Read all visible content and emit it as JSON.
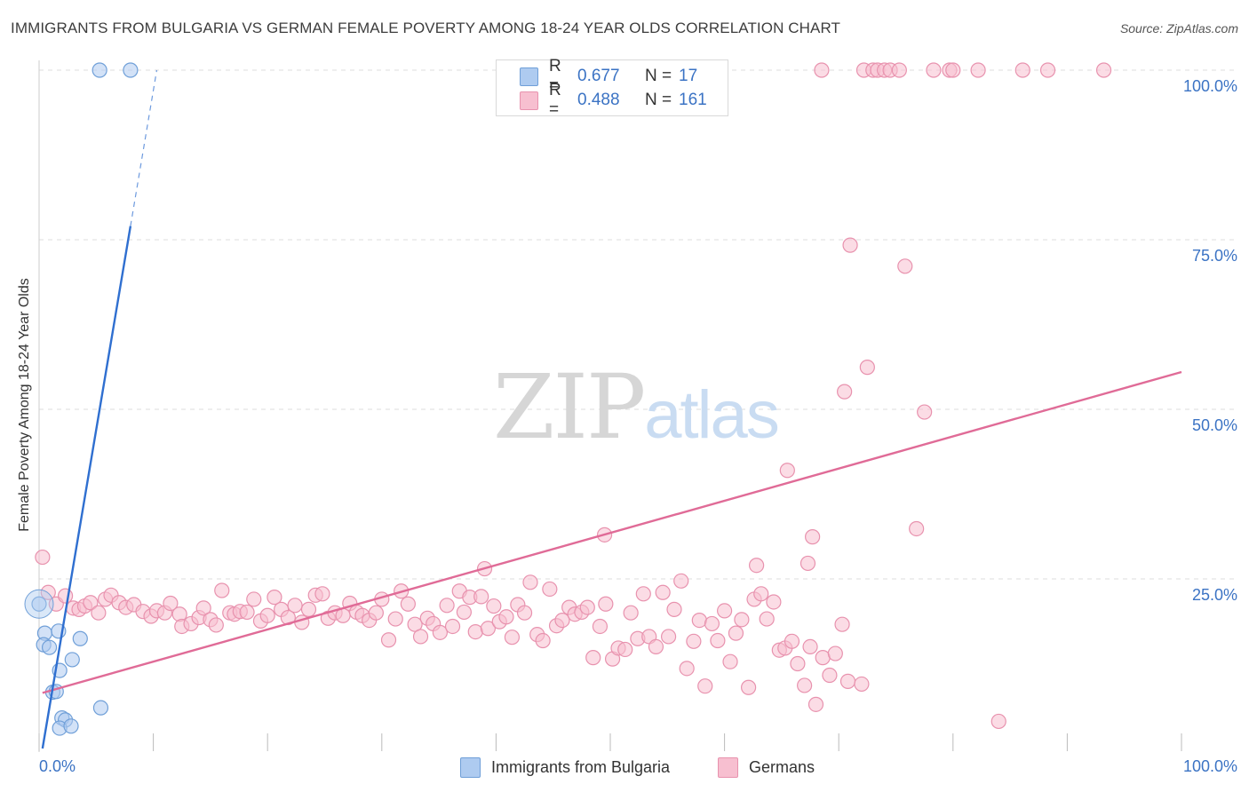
{
  "title": "IMMIGRANTS FROM BULGARIA VS GERMAN FEMALE POVERTY AMONG 18-24 YEAR OLDS CORRELATION CHART",
  "source": "Source: ZipAtlas.com",
  "watermark": {
    "zip": "ZIP",
    "atlas": "atlas"
  },
  "legend": {
    "r_label": "R =",
    "n_label": "N =",
    "rows": [
      {
        "r": "0.677",
        "n": "17"
      },
      {
        "r": "0.488",
        "n": "161"
      }
    ]
  },
  "colors": {
    "bulgaria_fill": "#aecbf0",
    "bulgaria_stroke": "#6f9fd8",
    "bulgaria_line": "#2f6fd0",
    "germans_fill": "#f7bfd0",
    "germans_stroke": "#e892ae",
    "germans_line": "#e06b97",
    "tick_label": "#3b73c4",
    "grid": "#dddddd"
  },
  "chart_data": {
    "type": "scatter",
    "title": "IMMIGRANTS FROM BULGARIA VS GERMAN FEMALE POVERTY AMONG 18-24 YEAR OLDS CORRELATION CHART",
    "xlabel": "",
    "ylabel": "Female Poverty Among 18-24 Year Olds",
    "xlim": [
      0,
      100
    ],
    "ylim": [
      0,
      100
    ],
    "x_tick_labels": [
      "0.0%",
      "100.0%"
    ],
    "y_ticks": [
      25,
      50,
      75,
      100
    ],
    "y_tick_labels": [
      "25.0%",
      "50.0%",
      "75.0%",
      "100.0%"
    ],
    "grid": true,
    "legend_position": "top-center",
    "series": [
      {
        "name": "Immigrants from Bulgaria",
        "r": 0.677,
        "n": 17,
        "trend": {
          "x": [
            0.3,
            8.0
          ],
          "y": [
            0,
            77
          ],
          "dashed_to": {
            "x": 10.3,
            "y": 100
          }
        },
        "points": [
          [
            5.3,
            100
          ],
          [
            8.0,
            100
          ],
          [
            0.0,
            21.3
          ],
          [
            0.5,
            17
          ],
          [
            0.4,
            15.3
          ],
          [
            0.9,
            14.9
          ],
          [
            1.7,
            17.3
          ],
          [
            3.6,
            16.2
          ],
          [
            1.8,
            11.5
          ],
          [
            2.9,
            13.1
          ],
          [
            1.2,
            8.3
          ],
          [
            1.5,
            8.4
          ],
          [
            2.0,
            4.5
          ],
          [
            2.3,
            4.2
          ],
          [
            5.4,
            6.0
          ],
          [
            1.8,
            3.0
          ],
          [
            2.8,
            3.3
          ]
        ]
      },
      {
        "name": "Germans",
        "r": 0.488,
        "n": 161,
        "trend": {
          "x": [
            0.3,
            100
          ],
          "y": [
            8.2,
            55.5
          ]
        },
        "points": [
          [
            68.5,
            100
          ],
          [
            72.2,
            100
          ],
          [
            73.0,
            100
          ],
          [
            73.4,
            100
          ],
          [
            74.0,
            100
          ],
          [
            74.5,
            100
          ],
          [
            75.3,
            100
          ],
          [
            78.3,
            100
          ],
          [
            79.7,
            100
          ],
          [
            80.0,
            100
          ],
          [
            82.2,
            100
          ],
          [
            86.1,
            100
          ],
          [
            88.3,
            100
          ],
          [
            93.2,
            100
          ],
          [
            71.0,
            74.2
          ],
          [
            75.8,
            71.1
          ],
          [
            72.5,
            56.2
          ],
          [
            70.5,
            52.6
          ],
          [
            77.5,
            49.6
          ],
          [
            65.5,
            41.0
          ],
          [
            49.5,
            31.5
          ],
          [
            67.7,
            31.2
          ],
          [
            76.8,
            32.4
          ],
          [
            39.0,
            26.5
          ],
          [
            62.8,
            27.0
          ],
          [
            67.3,
            27.3
          ],
          [
            0.3,
            28.2
          ],
          [
            0.8,
            23.0
          ],
          [
            1.5,
            21.3
          ],
          [
            2.3,
            22.5
          ],
          [
            3.0,
            20.7
          ],
          [
            3.5,
            20.5
          ],
          [
            4.0,
            21.0
          ],
          [
            4.5,
            21.5
          ],
          [
            5.2,
            20.0
          ],
          [
            5.8,
            22.0
          ],
          [
            6.3,
            22.6
          ],
          [
            7.0,
            21.5
          ],
          [
            7.6,
            20.8
          ],
          [
            8.3,
            21.2
          ],
          [
            9.1,
            20.2
          ],
          [
            9.8,
            19.5
          ],
          [
            10.3,
            20.3
          ],
          [
            11.0,
            20.0
          ],
          [
            11.5,
            21.4
          ],
          [
            12.3,
            19.8
          ],
          [
            12.5,
            18.0
          ],
          [
            13.3,
            18.4
          ],
          [
            14.0,
            19.3
          ],
          [
            14.4,
            20.7
          ],
          [
            15.0,
            19.0
          ],
          [
            15.5,
            18.2
          ],
          [
            16.0,
            23.3
          ],
          [
            16.7,
            20.0
          ],
          [
            17.1,
            19.8
          ],
          [
            17.6,
            20.2
          ],
          [
            18.2,
            20.1
          ],
          [
            18.8,
            22.0
          ],
          [
            19.4,
            18.8
          ],
          [
            20.0,
            19.6
          ],
          [
            20.6,
            22.3
          ],
          [
            21.2,
            20.5
          ],
          [
            21.8,
            19.3
          ],
          [
            22.4,
            21.1
          ],
          [
            23.0,
            18.6
          ],
          [
            23.6,
            20.5
          ],
          [
            24.2,
            22.6
          ],
          [
            24.8,
            22.8
          ],
          [
            25.3,
            19.2
          ],
          [
            25.9,
            20.0
          ],
          [
            26.6,
            19.6
          ],
          [
            27.2,
            21.4
          ],
          [
            27.8,
            20.1
          ],
          [
            28.3,
            19.6
          ],
          [
            28.9,
            18.9
          ],
          [
            29.5,
            20.0
          ],
          [
            30.0,
            22.0
          ],
          [
            30.6,
            16.0
          ],
          [
            31.2,
            19.1
          ],
          [
            31.7,
            23.2
          ],
          [
            32.3,
            21.3
          ],
          [
            32.9,
            18.3
          ],
          [
            33.4,
            16.5
          ],
          [
            34.0,
            19.2
          ],
          [
            34.5,
            18.4
          ],
          [
            35.1,
            17.1
          ],
          [
            35.7,
            21.1
          ],
          [
            36.2,
            18.0
          ],
          [
            36.8,
            23.2
          ],
          [
            37.2,
            20.1
          ],
          [
            37.7,
            22.3
          ],
          [
            38.2,
            17.2
          ],
          [
            38.7,
            22.4
          ],
          [
            39.3,
            17.7
          ],
          [
            39.8,
            21.0
          ],
          [
            40.3,
            18.7
          ],
          [
            40.9,
            19.4
          ],
          [
            41.4,
            16.4
          ],
          [
            41.9,
            21.2
          ],
          [
            42.5,
            20.0
          ],
          [
            43.0,
            24.5
          ],
          [
            43.6,
            16.8
          ],
          [
            44.1,
            15.9
          ],
          [
            44.7,
            23.5
          ],
          [
            45.3,
            18.1
          ],
          [
            45.8,
            18.9
          ],
          [
            46.4,
            20.8
          ],
          [
            46.9,
            19.8
          ],
          [
            47.5,
            20.1
          ],
          [
            48.0,
            20.8
          ],
          [
            48.5,
            13.4
          ],
          [
            49.1,
            18.0
          ],
          [
            49.6,
            21.3
          ],
          [
            50.2,
            13.2
          ],
          [
            50.7,
            14.8
          ],
          [
            51.3,
            14.6
          ],
          [
            51.8,
            20.0
          ],
          [
            52.4,
            16.2
          ],
          [
            52.9,
            22.8
          ],
          [
            53.4,
            16.5
          ],
          [
            54.0,
            15.0
          ],
          [
            54.6,
            23.0
          ],
          [
            55.1,
            16.5
          ],
          [
            55.6,
            20.5
          ],
          [
            56.2,
            24.7
          ],
          [
            56.7,
            11.8
          ],
          [
            57.3,
            15.8
          ],
          [
            57.8,
            18.9
          ],
          [
            58.3,
            9.2
          ],
          [
            58.9,
            18.4
          ],
          [
            59.4,
            15.9
          ],
          [
            60.0,
            20.3
          ],
          [
            60.5,
            12.8
          ],
          [
            61.0,
            17.0
          ],
          [
            61.5,
            19.0
          ],
          [
            62.1,
            9.0
          ],
          [
            62.6,
            22.0
          ],
          [
            63.2,
            22.8
          ],
          [
            63.7,
            19.1
          ],
          [
            64.3,
            21.6
          ],
          [
            64.8,
            14.5
          ],
          [
            65.3,
            14.8
          ],
          [
            65.9,
            15.8
          ],
          [
            66.4,
            12.5
          ],
          [
            67.0,
            9.3
          ],
          [
            67.5,
            15.0
          ],
          [
            68.0,
            6.5
          ],
          [
            68.6,
            13.4
          ],
          [
            69.2,
            10.8
          ],
          [
            69.7,
            14.0
          ],
          [
            70.3,
            18.3
          ],
          [
            70.8,
            9.9
          ],
          [
            72.0,
            9.5
          ],
          [
            84.0,
            4.0
          ]
        ]
      }
    ]
  },
  "bottom_legend": [
    "Immigrants from Bulgaria",
    "Germans"
  ]
}
